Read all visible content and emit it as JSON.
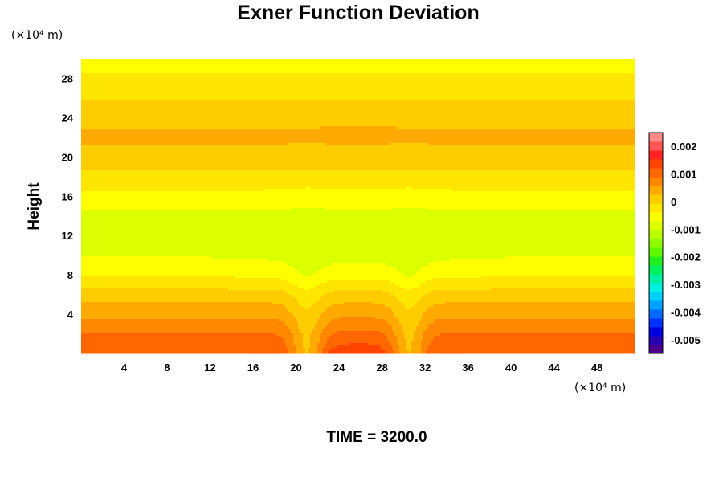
{
  "chart_data": {
    "type": "heatmap",
    "title": "Exner Function Deviation",
    "ylabel": "Height",
    "x_unit_label": "(×10⁴ m)",
    "y_unit_label": "(×10⁴ m)",
    "time_label": "TIME = 3200.0",
    "xlim": [
      0,
      51.5
    ],
    "ylim": [
      0,
      30
    ],
    "x_ticks": [
      4,
      8,
      12,
      16,
      20,
      24,
      28,
      32,
      36,
      40,
      44,
      48
    ],
    "y_ticks": [
      4,
      8,
      12,
      16,
      20,
      24,
      28
    ],
    "colorbar": {
      "range": [
        -0.0055,
        0.0025
      ],
      "tick_values": [
        0.002,
        0.001,
        0,
        -0.001,
        -0.002,
        -0.003,
        -0.004,
        -0.005
      ],
      "tick_labels": [
        "0.002",
        "0.001",
        "0",
        "-0.001",
        "-0.002",
        "-0.003",
        "-0.004",
        "-0.005"
      ],
      "colors": [
        "#4a008a",
        "#2a00b4",
        "#0000e0",
        "#0030ff",
        "#006aff",
        "#00a0ff",
        "#00d0ff",
        "#00f0e0",
        "#00f0a0",
        "#00f060",
        "#20f020",
        "#60f800",
        "#90fc00",
        "#b8ff00",
        "#dcff00",
        "#ffff00",
        "#ffe600",
        "#ffcc00",
        "#ffaa00",
        "#ff8800",
        "#ff6600",
        "#ff4400",
        "#ff2222",
        "#ff5555",
        "#ff8888"
      ]
    },
    "vertical_profile": [
      {
        "height": 0.0,
        "value": 0.0012
      },
      {
        "height": 2.0,
        "value": 0.0009
      },
      {
        "height": 4.0,
        "value": 0.0005
      },
      {
        "height": 6.0,
        "value": 0.0001
      },
      {
        "height": 8.0,
        "value": -0.0004
      },
      {
        "height": 10.5,
        "value": -0.0008
      },
      {
        "height": 12.5,
        "value": -0.0009
      },
      {
        "height": 14.5,
        "value": -0.0007
      },
      {
        "height": 16.5,
        "value": -0.0004
      },
      {
        "height": 18.5,
        "value": -0.0001
      },
      {
        "height": 20.0,
        "value": 0.0002
      },
      {
        "height": 22.0,
        "value": 0.0003
      },
      {
        "height": 24.0,
        "value": 0.0002
      },
      {
        "height": 25.5,
        "value": 0.0
      },
      {
        "height": 27.5,
        "value": -0.0003
      },
      {
        "height": 30.0,
        "value": -0.0005
      }
    ],
    "features": [
      {
        "name": "trough-left",
        "x": 21.0,
        "y_top": 2.0,
        "amplitude": -0.0011
      },
      {
        "name": "trough-right",
        "x": 30.5,
        "y_top": 2.0,
        "amplitude": -0.0011
      },
      {
        "name": "surface-maximum",
        "x": 25.8,
        "y": 0.0,
        "value": 0.0015
      }
    ]
  },
  "colors": {
    "background": "#ffffff",
    "text": "#000000"
  }
}
